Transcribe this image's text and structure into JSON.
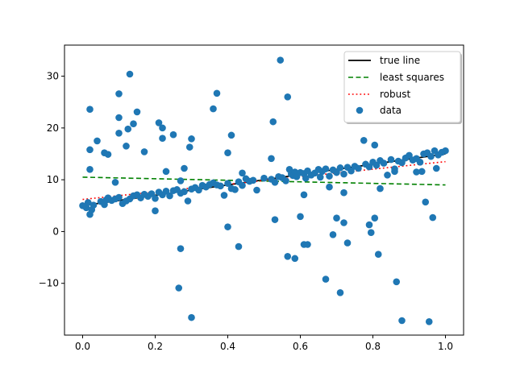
{
  "chart_data": {
    "type": "scatter",
    "xlim": [
      -0.05,
      1.05
    ],
    "ylim": [
      -20,
      36
    ],
    "xticks": [
      "0.0",
      "0.2",
      "0.4",
      "0.6",
      "0.8",
      "1.0"
    ],
    "yticks": [
      "-10",
      "0",
      "10",
      "20",
      "30"
    ],
    "grid": false,
    "legend_position": "top-right",
    "lines": [
      {
        "name": "true line",
        "color": "#000000",
        "style": "solid",
        "x": [
          0,
          1
        ],
        "y": [
          5,
          15
        ]
      },
      {
        "name": "least squares",
        "color": "#008000",
        "style": "dashed",
        "x": [
          0,
          1
        ],
        "y": [
          10.5,
          9.0
        ]
      },
      {
        "name": "robust",
        "color": "#ff0000",
        "style": "dotted",
        "x": [
          0,
          1
        ],
        "y": [
          6.2,
          13.5
        ]
      }
    ],
    "scatter": {
      "name": "data",
      "color": "#1f77b4",
      "points": [
        [
          0.0,
          5.0
        ],
        [
          0.01,
          4.6
        ],
        [
          0.015,
          5.6
        ],
        [
          0.02,
          3.3
        ],
        [
          0.025,
          4.2
        ],
        [
          0.03,
          5.1
        ],
        [
          0.05,
          5.8
        ],
        [
          0.06,
          5.2
        ],
        [
          0.065,
          6.1
        ],
        [
          0.07,
          6.5
        ],
        [
          0.08,
          6.0
        ],
        [
          0.09,
          6.3
        ],
        [
          0.1,
          6.6
        ],
        [
          0.11,
          5.4
        ],
        [
          0.12,
          5.9
        ],
        [
          0.13,
          6.3
        ],
        [
          0.14,
          6.9
        ],
        [
          0.15,
          7.1
        ],
        [
          0.16,
          6.5
        ],
        [
          0.17,
          7.2
        ],
        [
          0.18,
          6.8
        ],
        [
          0.19,
          7.3
        ],
        [
          0.2,
          6.4
        ],
        [
          0.21,
          7.6
        ],
        [
          0.22,
          7.1
        ],
        [
          0.23,
          7.8
        ],
        [
          0.24,
          6.9
        ],
        [
          0.25,
          7.9
        ],
        [
          0.26,
          8.1
        ],
        [
          0.27,
          7.4
        ],
        [
          0.28,
          7.7
        ],
        [
          0.3,
          8.2
        ],
        [
          0.31,
          8.5
        ],
        [
          0.32,
          8.0
        ],
        [
          0.33,
          8.9
        ],
        [
          0.34,
          8.6
        ],
        [
          0.35,
          9.1
        ],
        [
          0.36,
          9.4
        ],
        [
          0.37,
          9.0
        ],
        [
          0.38,
          8.8
        ],
        [
          0.4,
          9.3
        ],
        [
          0.41,
          8.3
        ],
        [
          0.42,
          8.1
        ],
        [
          0.43,
          9.6
        ],
        [
          0.44,
          8.9
        ],
        [
          0.45,
          10.2
        ],
        [
          0.46,
          9.7
        ],
        [
          0.47,
          9.9
        ],
        [
          0.48,
          8.0
        ],
        [
          0.5,
          10.3
        ],
        [
          0.52,
          10.1
        ],
        [
          0.53,
          9.5
        ],
        [
          0.54,
          10.6
        ],
        [
          0.55,
          10.4
        ],
        [
          0.56,
          9.8
        ],
        [
          0.57,
          12.0
        ],
        [
          0.575,
          11.1
        ],
        [
          0.58,
          10.8
        ],
        [
          0.585,
          11.5
        ],
        [
          0.59,
          10.6
        ],
        [
          0.6,
          11.4
        ],
        [
          0.61,
          11.2
        ],
        [
          0.615,
          10.3
        ],
        [
          0.62,
          11.7
        ],
        [
          0.63,
          10.9
        ],
        [
          0.64,
          11.3
        ],
        [
          0.65,
          12.0
        ],
        [
          0.655,
          10.5
        ],
        [
          0.66,
          11.6
        ],
        [
          0.67,
          12.1
        ],
        [
          0.68,
          10.7
        ],
        [
          0.69,
          11.9
        ],
        [
          0.7,
          11.4
        ],
        [
          0.71,
          12.3
        ],
        [
          0.72,
          11.1
        ],
        [
          0.73,
          12.4
        ],
        [
          0.74,
          11.7
        ],
        [
          0.75,
          12.6
        ],
        [
          0.76,
          12.2
        ],
        [
          0.78,
          13.0
        ],
        [
          0.79,
          12.5
        ],
        [
          0.8,
          13.4
        ],
        [
          0.81,
          12.8
        ],
        [
          0.82,
          13.7
        ],
        [
          0.83,
          13.2
        ],
        [
          0.84,
          10.9
        ],
        [
          0.85,
          13.9
        ],
        [
          0.86,
          12.1
        ],
        [
          0.87,
          13.6
        ],
        [
          0.88,
          13.3
        ],
        [
          0.89,
          14.2
        ],
        [
          0.9,
          14.7
        ],
        [
          0.91,
          13.8
        ],
        [
          0.92,
          14.1
        ],
        [
          0.93,
          13.4
        ],
        [
          0.94,
          15.0
        ],
        [
          0.95,
          15.2
        ],
        [
          0.96,
          14.5
        ],
        [
          0.97,
          15.6
        ],
        [
          0.98,
          14.8
        ],
        [
          0.99,
          15.3
        ],
        [
          1.0,
          15.6
        ],
        [
          0.975,
          12.2
        ],
        [
          0.935,
          11.6
        ],
        [
          0.92,
          11.5
        ],
        [
          0.86,
          11.6
        ],
        [
          0.82,
          8.3
        ],
        [
          0.72,
          7.5
        ],
        [
          0.68,
          8.6
        ],
        [
          0.61,
          7.1
        ],
        [
          0.02,
          23.6
        ],
        [
          0.02,
          15.8
        ],
        [
          0.02,
          12.0
        ],
        [
          0.04,
          17.5
        ],
        [
          0.06,
          15.2
        ],
        [
          0.07,
          14.9
        ],
        [
          0.09,
          9.5
        ],
        [
          0.1,
          22.0
        ],
        [
          0.1,
          19.0
        ],
        [
          0.1,
          26.6
        ],
        [
          0.12,
          16.5
        ],
        [
          0.125,
          19.8
        ],
        [
          0.13,
          30.4
        ],
        [
          0.14,
          20.8
        ],
        [
          0.15,
          23.1
        ],
        [
          0.17,
          15.4
        ],
        [
          0.21,
          21.0
        ],
        [
          0.22,
          18.0
        ],
        [
          0.22,
          20.0
        ],
        [
          0.23,
          11.6
        ],
        [
          0.25,
          18.7
        ],
        [
          0.27,
          9.8
        ],
        [
          0.28,
          12.2
        ],
        [
          0.295,
          16.3
        ],
        [
          0.3,
          17.9
        ],
        [
          0.2,
          4.0
        ],
        [
          0.27,
          -3.3
        ],
        [
          0.265,
          -10.9
        ],
        [
          0.3,
          -16.6
        ],
        [
          0.29,
          5.9
        ],
        [
          0.36,
          23.7
        ],
        [
          0.37,
          26.7
        ],
        [
          0.39,
          7.0
        ],
        [
          0.4,
          15.2
        ],
        [
          0.41,
          18.6
        ],
        [
          0.4,
          0.9
        ],
        [
          0.43,
          -2.9
        ],
        [
          0.44,
          11.3
        ],
        [
          0.525,
          21.2
        ],
        [
          0.52,
          14.1
        ],
        [
          0.53,
          2.3
        ],
        [
          0.545,
          33.1
        ],
        [
          0.565,
          26.0
        ],
        [
          0.565,
          -4.8
        ],
        [
          0.585,
          -5.2
        ],
        [
          0.6,
          2.9
        ],
        [
          0.61,
          -2.5
        ],
        [
          0.62,
          -2.5
        ],
        [
          0.67,
          -9.2
        ],
        [
          0.69,
          -0.6
        ],
        [
          0.7,
          2.6
        ],
        [
          0.71,
          -11.8
        ],
        [
          0.72,
          1.7
        ],
        [
          0.73,
          -2.2
        ],
        [
          0.775,
          17.6
        ],
        [
          0.79,
          1.3
        ],
        [
          0.795,
          -0.2
        ],
        [
          0.805,
          2.6
        ],
        [
          0.805,
          16.7
        ],
        [
          0.815,
          -4.4
        ],
        [
          0.865,
          -9.7
        ],
        [
          0.88,
          -17.2
        ],
        [
          0.945,
          5.7
        ],
        [
          0.955,
          -17.4
        ],
        [
          0.965,
          2.7
        ]
      ]
    }
  }
}
